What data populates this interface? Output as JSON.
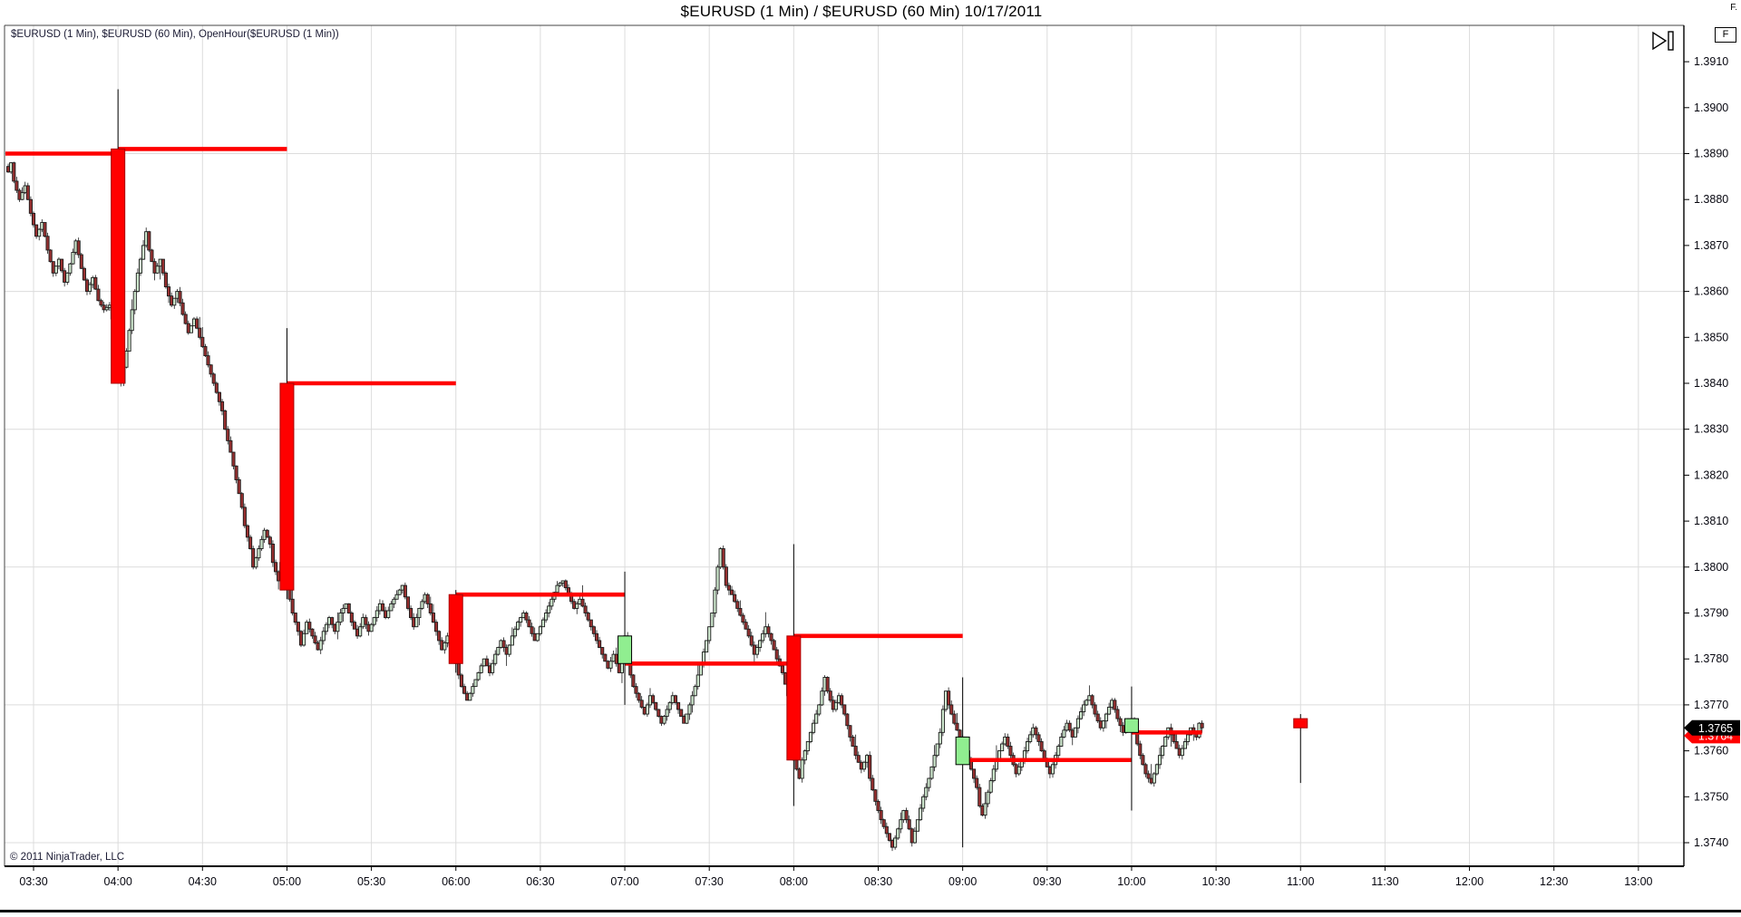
{
  "window": {
    "title": "$EURUSD (1 Min) / $EURUSD (60 Min)  10/17/2011",
    "corner_label": "F."
  },
  "chart": {
    "instrument_label": "$EURUSD (1 Min), $EURUSD (60 Min), OpenHour($EURUSD (1 Min))",
    "copyright": "© 2011 NinjaTrader, LLC",
    "focus_button_label": "F",
    "colors": {
      "open_hour_line": "#ff0000",
      "hour_down_fill": "#ff0000",
      "hour_down_stroke": "#a80000",
      "hour_up_fill": "#90ee90",
      "hour_up_stroke": "#000000",
      "min_up_fill": "#cfe9cf",
      "min_down_fill": "#973030",
      "min_stroke": "#1b1b1b",
      "grid": "#dcdcdc",
      "axis": "#000000",
      "marker_primary_bg": "#000000",
      "marker_primary_fg": "#ffffff",
      "marker_secondary_bg": "#ff0000",
      "marker_secondary_fg": "#ffffff"
    }
  },
  "chart_data": {
    "type": "candlestick",
    "symbol": "$EURUSD",
    "date": "10/17/2011",
    "series": [
      "$EURUSD (1 Min)",
      "$EURUSD (60 Min)",
      "OpenHour($EURUSD (1 Min))"
    ],
    "x_axis": {
      "tick_labels": [
        "03:30",
        "04:00",
        "04:30",
        "05:00",
        "05:30",
        "06:00",
        "06:30",
        "07:00",
        "07:30",
        "08:00",
        "08:30",
        "09:00",
        "09:30",
        "10:00",
        "10:30",
        "11:00",
        "11:30",
        "12:00",
        "12:30",
        "13:00"
      ],
      "minutes_per_tick": 30
    },
    "y_axis": {
      "tick_labels": [
        "1.3910",
        "1.3900",
        "1.3890",
        "1.3880",
        "1.3870",
        "1.3860",
        "1.3850",
        "1.3840",
        "1.3830",
        "1.3820",
        "1.3810",
        "1.3800",
        "1.3790",
        "1.3780",
        "1.3770",
        "1.3760",
        "1.3750",
        "1.3740"
      ],
      "tick_step": 0.001,
      "grid_base": 1.374,
      "grid_step": 0.003
    },
    "last_price": {
      "primary": "1.3765",
      "secondary": "1.3764"
    },
    "hourly_candles": [
      {
        "time": "04:00",
        "t": 30,
        "open": 1.3891,
        "high": 1.3904,
        "low": 1.384,
        "close": 1.384
      },
      {
        "time": "05:00",
        "t": 90,
        "open": 1.384,
        "high": 1.3852,
        "low": 1.3793,
        "close": 1.3795
      },
      {
        "time": "06:00",
        "t": 150,
        "open": 1.3794,
        "high": 1.3795,
        "low": 1.3777,
        "close": 1.3779
      },
      {
        "time": "07:00",
        "t": 210,
        "open": 1.3779,
        "high": 1.3799,
        "low": 1.377,
        "close": 1.3785
      },
      {
        "time": "08:00",
        "t": 270,
        "open": 1.3785,
        "high": 1.3805,
        "low": 1.3748,
        "close": 1.3758
      },
      {
        "time": "09:00",
        "t": 330,
        "open": 1.3757,
        "high": 1.3776,
        "low": 1.3739,
        "close": 1.3763
      },
      {
        "time": "10:00",
        "t": 390,
        "open": 1.3764,
        "high": 1.3774,
        "low": 1.3747,
        "close": 1.3767
      },
      {
        "time": "11:00",
        "t": 450,
        "open": 1.3767,
        "high": 1.3768,
        "low": 1.3753,
        "close": 1.3765
      }
    ],
    "open_hour_lines": [
      {
        "t0": -10,
        "t1": 30,
        "price": 1.389
      },
      {
        "t0": 30,
        "t1": 90,
        "price": 1.3891
      },
      {
        "t0": 90,
        "t1": 150,
        "price": 1.384
      },
      {
        "t0": 150,
        "t1": 210,
        "price": 1.3794
      },
      {
        "t0": 210,
        "t1": 270,
        "price": 1.3779
      },
      {
        "t0": 270,
        "t1": 330,
        "price": 1.3785
      },
      {
        "t0": 330,
        "t1": 390,
        "price": 1.3758
      },
      {
        "t0": 390,
        "t1": 415,
        "price": 1.3764
      }
    ],
    "minute_anchors": [
      [
        -9,
        1.3886
      ],
      [
        -8,
        1.3888
      ],
      [
        -7,
        1.3884
      ],
      [
        -5,
        1.388
      ],
      [
        -3,
        1.3883
      ],
      [
        -1,
        1.3877
      ],
      [
        1,
        1.3872
      ],
      [
        3,
        1.3875
      ],
      [
        5,
        1.3869
      ],
      [
        7,
        1.3864
      ],
      [
        9,
        1.3867
      ],
      [
        11,
        1.3862
      ],
      [
        13,
        1.3866
      ],
      [
        15,
        1.3871
      ],
      [
        17,
        1.3865
      ],
      [
        19,
        1.386
      ],
      [
        21,
        1.3863
      ],
      [
        23,
        1.3858
      ],
      [
        25,
        1.3856
      ],
      [
        27,
        1.3857
      ],
      [
        28,
        1.3854
      ],
      [
        29,
        1.3848
      ],
      [
        30,
        1.3842
      ],
      [
        31,
        1.384
      ],
      [
        33,
        1.3847
      ],
      [
        35,
        1.3856
      ],
      [
        37,
        1.3864
      ],
      [
        39,
        1.387
      ],
      [
        40,
        1.3873
      ],
      [
        41,
        1.3869
      ],
      [
        43,
        1.3864
      ],
      [
        45,
        1.3867
      ],
      [
        47,
        1.3861
      ],
      [
        49,
        1.3857
      ],
      [
        51,
        1.386
      ],
      [
        53,
        1.3855
      ],
      [
        55,
        1.3851
      ],
      [
        57,
        1.3854
      ],
      [
        59,
        1.385
      ],
      [
        61,
        1.3846
      ],
      [
        63,
        1.3842
      ],
      [
        65,
        1.3838
      ],
      [
        67,
        1.3834
      ],
      [
        68,
        1.383
      ],
      [
        70,
        1.3825
      ],
      [
        72,
        1.3819
      ],
      [
        74,
        1.3813
      ],
      [
        75,
        1.3809
      ],
      [
        77,
        1.3804
      ],
      [
        78,
        1.38
      ],
      [
        80,
        1.3804
      ],
      [
        82,
        1.3808
      ],
      [
        84,
        1.3805
      ],
      [
        85,
        1.3801
      ],
      [
        87,
        1.3797
      ],
      [
        88,
        1.3801
      ],
      [
        90,
        1.3796
      ],
      [
        92,
        1.379
      ],
      [
        94,
        1.3786
      ],
      [
        95,
        1.3783
      ],
      [
        97,
        1.3788
      ],
      [
        99,
        1.3785
      ],
      [
        101,
        1.3782
      ],
      [
        103,
        1.3786
      ],
      [
        105,
        1.3789
      ],
      [
        107,
        1.3786
      ],
      [
        109,
        1.379
      ],
      [
        111,
        1.3792
      ],
      [
        113,
        1.3788
      ],
      [
        115,
        1.3785
      ],
      [
        117,
        1.3789
      ],
      [
        119,
        1.3786
      ],
      [
        121,
        1.3789
      ],
      [
        123,
        1.3792
      ],
      [
        125,
        1.3789
      ],
      [
        127,
        1.3792
      ],
      [
        129,
        1.3794
      ],
      [
        131,
        1.3796
      ],
      [
        133,
        1.3791
      ],
      [
        135,
        1.3787
      ],
      [
        137,
        1.3791
      ],
      [
        139,
        1.3794
      ],
      [
        141,
        1.379
      ],
      [
        143,
        1.3786
      ],
      [
        145,
        1.3782
      ],
      [
        147,
        1.3785
      ],
      [
        149,
        1.3781
      ],
      [
        150,
        1.3779
      ],
      [
        152,
        1.3774
      ],
      [
        154,
        1.3771
      ],
      [
        156,
        1.3774
      ],
      [
        158,
        1.3777
      ],
      [
        160,
        1.378
      ],
      [
        162,
        1.3777
      ],
      [
        164,
        1.3781
      ],
      [
        166,
        1.3784
      ],
      [
        168,
        1.3781
      ],
      [
        170,
        1.3785
      ],
      [
        172,
        1.3788
      ],
      [
        174,
        1.379
      ],
      [
        176,
        1.3787
      ],
      [
        178,
        1.3784
      ],
      [
        180,
        1.3787
      ],
      [
        182,
        1.379
      ],
      [
        184,
        1.3793
      ],
      [
        186,
        1.3796
      ],
      [
        188,
        1.3797
      ],
      [
        190,
        1.3794
      ],
      [
        192,
        1.3791
      ],
      [
        194,
        1.3793
      ],
      [
        196,
        1.379
      ],
      [
        198,
        1.3787
      ],
      [
        200,
        1.3784
      ],
      [
        202,
        1.3781
      ],
      [
        204,
        1.3778
      ],
      [
        206,
        1.3781
      ],
      [
        208,
        1.3777
      ],
      [
        209,
        1.3781
      ],
      [
        210,
        1.3785
      ],
      [
        211,
        1.3779
      ],
      [
        213,
        1.3774
      ],
      [
        215,
        1.3771
      ],
      [
        217,
        1.3768
      ],
      [
        219,
        1.3772
      ],
      [
        221,
        1.3769
      ],
      [
        223,
        1.3766
      ],
      [
        225,
        1.3769
      ],
      [
        227,
        1.3772
      ],
      [
        229,
        1.3769
      ],
      [
        231,
        1.3766
      ],
      [
        233,
        1.377
      ],
      [
        235,
        1.3774
      ],
      [
        237,
        1.3779
      ],
      [
        239,
        1.3784
      ],
      [
        241,
        1.379
      ],
      [
        242,
        1.3795
      ],
      [
        243,
        1.38
      ],
      [
        244,
        1.3804
      ],
      [
        245,
        1.38
      ],
      [
        246,
        1.3796
      ],
      [
        248,
        1.3794
      ],
      [
        250,
        1.3791
      ],
      [
        252,
        1.3788
      ],
      [
        254,
        1.3785
      ],
      [
        256,
        1.3781
      ],
      [
        258,
        1.3784
      ],
      [
        260,
        1.3787
      ],
      [
        262,
        1.3784
      ],
      [
        264,
        1.378
      ],
      [
        266,
        1.3777
      ],
      [
        268,
        1.3772
      ],
      [
        269,
        1.3768
      ],
      [
        270,
        1.3758
      ],
      [
        271,
        1.3756
      ],
      [
        272,
        1.3754
      ],
      [
        273,
        1.3758
      ],
      [
        275,
        1.3762
      ],
      [
        277,
        1.3766
      ],
      [
        279,
        1.377
      ],
      [
        281,
        1.3776
      ],
      [
        282,
        1.3773
      ],
      [
        284,
        1.3769
      ],
      [
        286,
        1.3772
      ],
      [
        288,
        1.3768
      ],
      [
        290,
        1.3763
      ],
      [
        292,
        1.3759
      ],
      [
        294,
        1.3756
      ],
      [
        296,
        1.3759
      ],
      [
        297,
        1.3754
      ],
      [
        299,
        1.3749
      ],
      [
        301,
        1.3745
      ],
      [
        303,
        1.3742
      ],
      [
        305,
        1.3739
      ],
      [
        307,
        1.3743
      ],
      [
        309,
        1.3747
      ],
      [
        311,
        1.3743
      ],
      [
        312,
        1.374
      ],
      [
        314,
        1.3745
      ],
      [
        316,
        1.375
      ],
      [
        318,
        1.3754
      ],
      [
        320,
        1.3759
      ],
      [
        322,
        1.3764
      ],
      [
        323,
        1.3769
      ],
      [
        324,
        1.3773
      ],
      [
        325,
        1.377
      ],
      [
        327,
        1.3766
      ],
      [
        329,
        1.3763
      ],
      [
        330,
        1.3763
      ],
      [
        331,
        1.376
      ],
      [
        333,
        1.3756
      ],
      [
        335,
        1.3752
      ],
      [
        336,
        1.3748
      ],
      [
        337,
        1.3746
      ],
      [
        339,
        1.3751
      ],
      [
        341,
        1.3756
      ],
      [
        343,
        1.376
      ],
      [
        345,
        1.3763
      ],
      [
        347,
        1.3759
      ],
      [
        349,
        1.3755
      ],
      [
        351,
        1.3758
      ],
      [
        353,
        1.3762
      ],
      [
        355,
        1.3765
      ],
      [
        357,
        1.3762
      ],
      [
        359,
        1.3758
      ],
      [
        361,
        1.3755
      ],
      [
        363,
        1.3759
      ],
      [
        365,
        1.3763
      ],
      [
        367,
        1.3766
      ],
      [
        369,
        1.3763
      ],
      [
        371,
        1.3767
      ],
      [
        373,
        1.377
      ],
      [
        375,
        1.3772
      ],
      [
        377,
        1.3768
      ],
      [
        379,
        1.3765
      ],
      [
        381,
        1.3768
      ],
      [
        383,
        1.3771
      ],
      [
        385,
        1.3767
      ],
      [
        387,
        1.3764
      ],
      [
        389,
        1.3767
      ],
      [
        390,
        1.3767
      ],
      [
        391,
        1.3764
      ],
      [
        393,
        1.3759
      ],
      [
        395,
        1.3755
      ],
      [
        397,
        1.3753
      ],
      [
        399,
        1.3757
      ],
      [
        401,
        1.3761
      ],
      [
        403,
        1.3765
      ],
      [
        405,
        1.3762
      ],
      [
        407,
        1.3759
      ],
      [
        409,
        1.3762
      ],
      [
        411,
        1.3765
      ],
      [
        413,
        1.3763
      ],
      [
        414,
        1.3766
      ],
      [
        415,
        1.3765
      ]
    ]
  }
}
